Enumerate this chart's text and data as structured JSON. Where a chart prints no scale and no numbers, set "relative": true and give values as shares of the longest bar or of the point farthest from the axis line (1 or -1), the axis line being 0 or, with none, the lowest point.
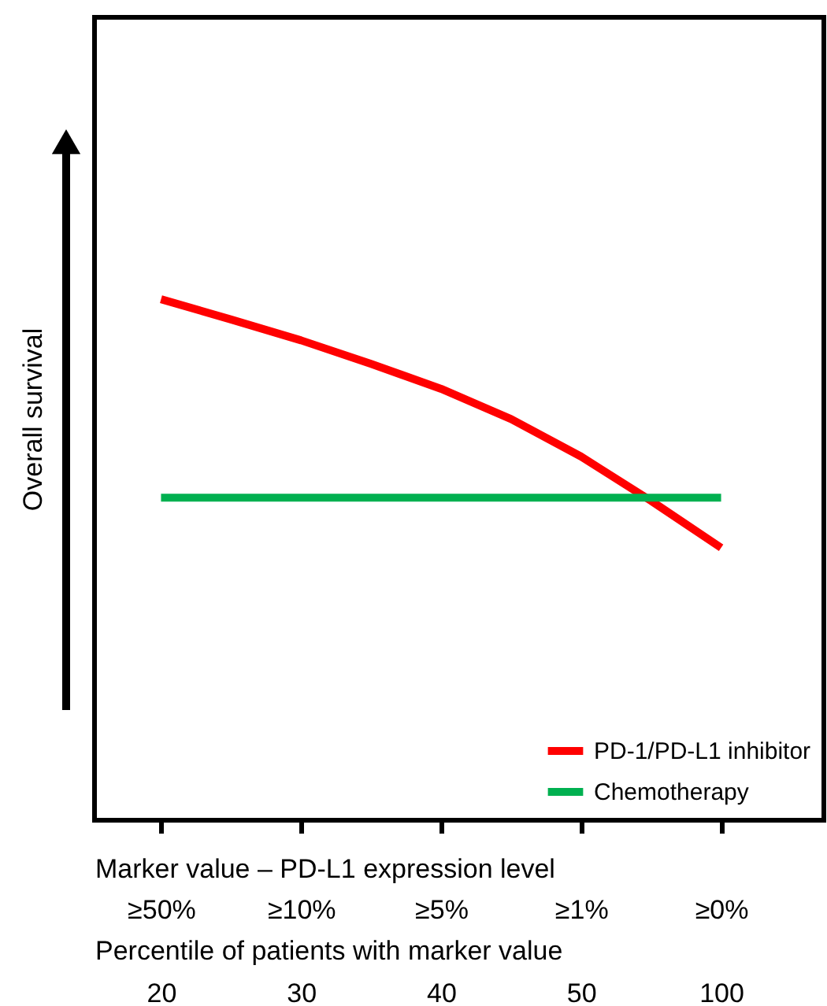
{
  "chart_data": {
    "type": "line",
    "relative": true,
    "xlabel": "Marker value – PD-L1 expression level",
    "ylabel": "Overall survival",
    "x2label": "Percentile of patients with marker value",
    "categories": [
      "≥50%",
      null,
      "≥10%",
      null,
      "≥5%",
      null,
      "≥1%",
      null,
      "≥0%"
    ],
    "annotations": [
      "20",
      "30",
      "40",
      "50",
      "100"
    ],
    "series": [
      {
        "name": "PD-1/PD-L1 inhibitor",
        "color": "#ff0000",
        "values": [
          1,
          0.961,
          0.921,
          0.876,
          0.828,
          0.77,
          0.698,
          0.613,
          0.523
        ]
      },
      {
        "name": "Chemotherapy",
        "color": "#00b050",
        "values": [
          0.619,
          0.619,
          0.619,
          0.619,
          0.619,
          0.619,
          0.619,
          0.619,
          0.619
        ]
      }
    ],
    "legend": "bottom right",
    "grid": false,
    "marker": "none",
    "line_style": "solid"
  }
}
